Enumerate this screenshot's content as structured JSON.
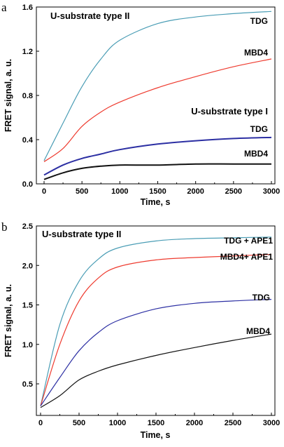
{
  "chart_data": [
    {
      "panel": "a",
      "type": "line",
      "xlabel": "Time, s",
      "ylabel": "FRET signal, a. u.",
      "xlim": [
        0,
        3000
      ],
      "ylim": [
        0,
        1.6
      ],
      "xticks": [
        0,
        500,
        1000,
        1500,
        2000,
        2500,
        3000
      ],
      "yticks": [
        0.0,
        0.4,
        0.8,
        1.2,
        1.6
      ],
      "ytick_labels": [
        "0.0",
        "0.4",
        "0.8",
        "1.2",
        "1.6"
      ],
      "xtick_labels": [
        "0",
        "500",
        "1000",
        "1500",
        "2000",
        "2500",
        "3000"
      ],
      "annotations": [
        "U-substrate type II",
        "U-substrate type I"
      ],
      "series": [
        {
          "name": "TDG",
          "group": "U-substrate type II",
          "color": "#4a9db5",
          "x": [
            0,
            250,
            500,
            750,
            1000,
            1500,
            2000,
            2500,
            3000
          ],
          "y": [
            0.21,
            0.55,
            0.88,
            1.13,
            1.3,
            1.45,
            1.51,
            1.54,
            1.56
          ]
        },
        {
          "name": "MBD4",
          "group": "U-substrate type II",
          "color": "#ee3b2f",
          "x": [
            0,
            250,
            500,
            750,
            1000,
            1500,
            2000,
            2500,
            3000
          ],
          "y": [
            0.2,
            0.32,
            0.52,
            0.65,
            0.74,
            0.87,
            0.97,
            1.06,
            1.13
          ]
        },
        {
          "name": "TDG",
          "group": "U-substrate type I",
          "color": "#2c2fa3",
          "x": [
            0,
            250,
            500,
            750,
            1000,
            1500,
            2000,
            2500,
            3000
          ],
          "y": [
            0.08,
            0.17,
            0.23,
            0.27,
            0.31,
            0.36,
            0.39,
            0.41,
            0.42
          ]
        },
        {
          "name": "MBD4",
          "group": "U-substrate type I",
          "color": "#111111",
          "x": [
            0,
            250,
            500,
            750,
            1000,
            1500,
            2000,
            2500,
            3000
          ],
          "y": [
            0.04,
            0.1,
            0.14,
            0.16,
            0.17,
            0.17,
            0.18,
            0.18,
            0.18
          ]
        }
      ]
    },
    {
      "panel": "b",
      "type": "line",
      "xlabel": "Time, s",
      "ylabel": "FRET signal, a. u.",
      "xlim": [
        0,
        3000
      ],
      "ylim": [
        0.1,
        2.5
      ],
      "xticks": [
        0,
        500,
        1000,
        1500,
        2000,
        2500,
        3000
      ],
      "yticks": [
        0.5,
        1.0,
        1.5,
        2.0,
        2.5
      ],
      "ytick_labels": [
        "0.5",
        "1.0",
        "1.5",
        "2.0",
        "2.5"
      ],
      "xtick_labels": [
        "0",
        "500",
        "1000",
        "1500",
        "2000",
        "2500",
        "3000"
      ],
      "annotations": [
        "U-substrate type II"
      ],
      "series": [
        {
          "name": "TDG + APE1",
          "color": "#4a9db5",
          "x": [
            0,
            250,
            500,
            750,
            1000,
            1500,
            2000,
            2500,
            3000
          ],
          "y": [
            0.22,
            1.25,
            1.8,
            2.08,
            2.22,
            2.31,
            2.34,
            2.35,
            2.36
          ]
        },
        {
          "name": "MBD4+ APE1",
          "color": "#ee3b2f",
          "x": [
            0,
            250,
            500,
            750,
            1000,
            1500,
            2000,
            2500,
            3000
          ],
          "y": [
            0.22,
            1.0,
            1.55,
            1.84,
            1.98,
            2.07,
            2.1,
            2.12,
            2.14
          ]
        },
        {
          "name": "TDG",
          "color": "#2c2fa3",
          "x": [
            0,
            250,
            500,
            750,
            1000,
            1500,
            2000,
            2500,
            3000
          ],
          "y": [
            0.22,
            0.58,
            0.92,
            1.15,
            1.3,
            1.45,
            1.52,
            1.55,
            1.57
          ]
        },
        {
          "name": "MBD4",
          "color": "#111111",
          "x": [
            0,
            250,
            500,
            750,
            1000,
            1500,
            2000,
            2500,
            3000
          ],
          "y": [
            0.2,
            0.35,
            0.55,
            0.66,
            0.74,
            0.86,
            0.96,
            1.05,
            1.13
          ]
        }
      ]
    }
  ]
}
